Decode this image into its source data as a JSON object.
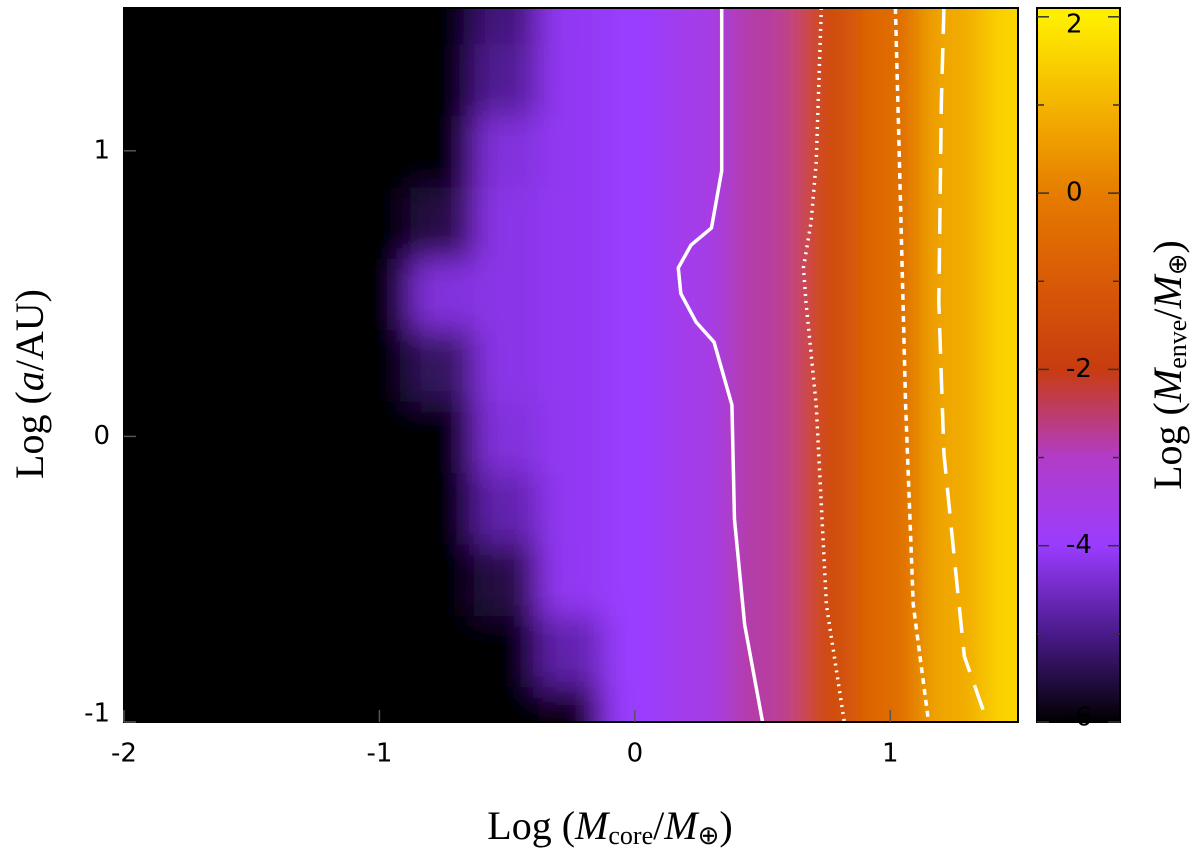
{
  "chart_data": {
    "type": "heatmap",
    "xlabel": [
      "Log (",
      "M",
      "core",
      "/",
      "M",
      "⊕",
      ")"
    ],
    "ylabel": [
      "Log (",
      "a",
      "/AU)"
    ],
    "cblabel": [
      "Log (",
      "M",
      "enve",
      "/",
      "M",
      "⊕",
      ")"
    ],
    "xlim": [
      -2,
      1.5
    ],
    "ylim": [
      -1,
      1.5
    ],
    "xticks": [
      -2,
      -1,
      0,
      1
    ],
    "yticks": [
      -1,
      0,
      1
    ],
    "cblim": [
      -6,
      2.1
    ],
    "cbticks": [
      -6,
      -4,
      -2,
      0,
      2
    ],
    "cbminorticks": [
      -5,
      -3,
      -1,
      1
    ],
    "colorscale": [
      [
        -6,
        "#000000"
      ],
      [
        -5,
        "#4a1a8a"
      ],
      [
        -4,
        "#9a3cff"
      ],
      [
        -3,
        "#b23cc8"
      ],
      [
        -2,
        "#c83c10"
      ],
      [
        -1,
        "#d85a06"
      ],
      [
        0,
        "#e67c00"
      ],
      [
        1,
        "#f4b400"
      ],
      [
        2,
        "#ffee00"
      ]
    ],
    "x": [
      -2,
      -1.75,
      -1.5,
      -1.25,
      -1,
      -0.75,
      -0.5,
      -0.25,
      0,
      0.25,
      0.5,
      0.75,
      1,
      1.25,
      1.5
    ],
    "y": [
      -1,
      -0.75,
      -0.5,
      -0.25,
      0,
      0.25,
      0.5,
      0.75,
      1,
      1.25,
      1.5
    ],
    "z": [
      [
        -7,
        -7,
        -7,
        -7,
        -7,
        -7,
        -7,
        -5.9,
        -4.0,
        -3.6,
        -2.8,
        -1.5,
        -0.5,
        0.8,
        1.6
      ],
      [
        -7,
        -7,
        -7,
        -7,
        -7,
        -7,
        -6.7,
        -4.7,
        -4.0,
        -3.6,
        -2.8,
        -1.5,
        -0.5,
        0.8,
        1.6
      ],
      [
        -7,
        -7,
        -7,
        -7,
        -7,
        -7,
        -5.5,
        -4.1,
        -4.0,
        -3.6,
        -2.8,
        -1.5,
        -0.5,
        0.8,
        1.6
      ],
      [
        -7,
        -7,
        -7,
        -7,
        -7,
        -6.7,
        -4.7,
        -4.1,
        -4.0,
        -3.6,
        -2.8,
        -1.5,
        -0.5,
        0.8,
        1.6
      ],
      [
        -7,
        -7,
        -7,
        -7,
        -7,
        -6.3,
        -4.3,
        -4.1,
        -4.0,
        -3.6,
        -2.8,
        -1.5,
        -0.5,
        0.8,
        1.6
      ],
      [
        -7,
        -7,
        -7,
        -7,
        -7,
        -5.3,
        -4.2,
        -4.1,
        -4.0,
        -3.6,
        -2.8,
        -1.5,
        -0.5,
        0.8,
        1.6
      ],
      [
        -7,
        -7,
        -7,
        -7,
        -6.3,
        -4.3,
        -4.2,
        -4.1,
        -4.0,
        -3.6,
        -2.8,
        -1.5,
        -0.5,
        0.8,
        1.6
      ],
      [
        -7,
        -7,
        -7,
        -7,
        -7,
        -5.5,
        -4.2,
        -4.1,
        -4.0,
        -3.6,
        -2.8,
        -1.5,
        -0.5,
        0.8,
        1.6
      ],
      [
        -7,
        -7,
        -7,
        -7,
        -7,
        -6.3,
        -4.3,
        -4.1,
        -4.0,
        -3.6,
        -2.8,
        -1.5,
        -0.5,
        0.8,
        1.6
      ],
      [
        -7,
        -7,
        -7,
        -7,
        -7,
        -6.9,
        -4.9,
        -4.1,
        -4.0,
        -3.6,
        -2.8,
        -1.5,
        -0.5,
        0.8,
        1.6
      ],
      [
        -7,
        -7,
        -7,
        -7,
        -7,
        -7,
        -5.1,
        -4.1,
        -4.0,
        -3.6,
        -2.8,
        -1.5,
        -0.5,
        0.8,
        1.6
      ]
    ],
    "contours": [
      {
        "color": "#ffffff",
        "dash": "none",
        "x": [
          0.34,
          0.34,
          0.3,
          0.22,
          0.17,
          0.18,
          0.24,
          0.31,
          0.38,
          0.39,
          0.43,
          0.5
        ],
        "y": [
          1.5,
          0.93,
          0.73,
          0.67,
          0.59,
          0.5,
          0.4,
          0.33,
          0.11,
          -0.29,
          -0.66,
          -1.0
        ]
      },
      {
        "color": "#ffffff",
        "dash": "2 5",
        "x": [
          0.73,
          0.71,
          0.69,
          0.66,
          0.67,
          0.71,
          0.75,
          0.82
        ],
        "y": [
          1.5,
          0.96,
          0.75,
          0.59,
          0.47,
          0.11,
          -0.59,
          -1.0
        ]
      },
      {
        "color": "#ffffff",
        "dash": "6 5",
        "x": [
          1.02,
          1.04,
          1.06,
          1.09,
          1.15
        ],
        "y": [
          1.5,
          0.82,
          0.11,
          -0.59,
          -1.0
        ]
      },
      {
        "color": "#ffffff",
        "dash": "26 14",
        "x": [
          1.21,
          1.2,
          1.19,
          1.21,
          1.25,
          1.29,
          1.38
        ],
        "y": [
          1.5,
          1.17,
          0.47,
          -0.06,
          -0.42,
          -0.77,
          -1.0
        ]
      }
    ]
  }
}
